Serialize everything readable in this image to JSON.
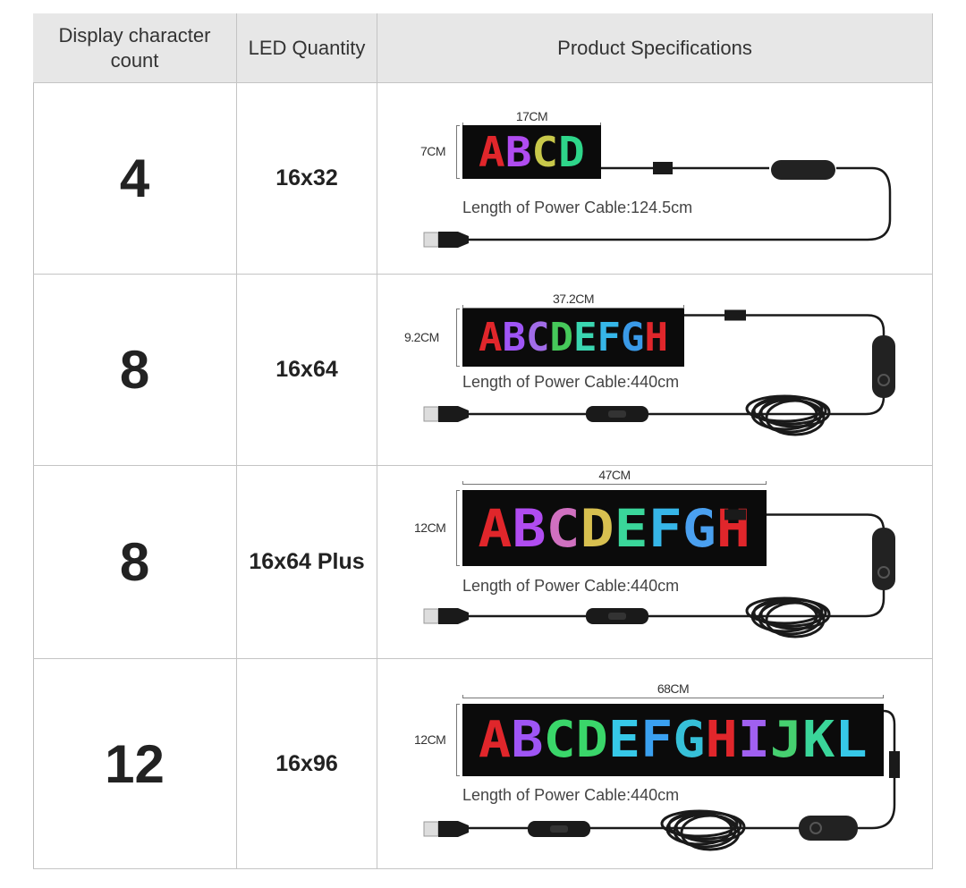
{
  "headers": [
    "Display character count",
    "LED Quantity",
    "Product Specifications"
  ],
  "rows": [
    {
      "count": "4",
      "led": "16x32",
      "width_label": "17CM",
      "height_label": "7CM",
      "letters": "ABCD",
      "colors": [
        "#e0262b",
        "#b04cf0",
        "#c8c84a",
        "#2ed68a"
      ],
      "cable": "Length of Power Cable:124.5cm"
    },
    {
      "count": "8",
      "led": "16x64",
      "width_label": "37.2CM",
      "height_label": "9.2CM",
      "letters": "ABCDEFGH",
      "colors": [
        "#e0262b",
        "#9f55f5",
        "#a16ce8",
        "#46c95a",
        "#3ad6b0",
        "#36b6e8",
        "#3a9ae8",
        "#e0262b"
      ],
      "cable": "Length of Power Cable:440cm"
    },
    {
      "count": "8",
      "led": "16x64 Plus",
      "width_label": "47CM",
      "height_label": "12CM",
      "letters": "ABCDEFGH",
      "colors": [
        "#e0262b",
        "#b04cf0",
        "#d070c0",
        "#d8c050",
        "#3ad69a",
        "#36b6e8",
        "#4aa0f0",
        "#e0262b"
      ],
      "cable": "Length of Power Cable:440cm"
    },
    {
      "count": "12",
      "led": "16x96",
      "width_label": "68CM",
      "height_label": "12CM",
      "letters": "ABCDEFGHIJKL",
      "colors": [
        "#e0262b",
        "#9f55f5",
        "#3ad66a",
        "#3ad66a",
        "#36c8e8",
        "#3aa0f0",
        "#36c0d8",
        "#e0262b",
        "#a060f0",
        "#46d070",
        "#3ad69a",
        "#36c8e8"
      ],
      "cable": "Length of Power Cable:440cm"
    }
  ],
  "colors": {
    "header_bg": "#e7e7e7",
    "border": "#c4c4c4",
    "panel": "#0b0b0b",
    "cable": "#1a1a1a"
  }
}
